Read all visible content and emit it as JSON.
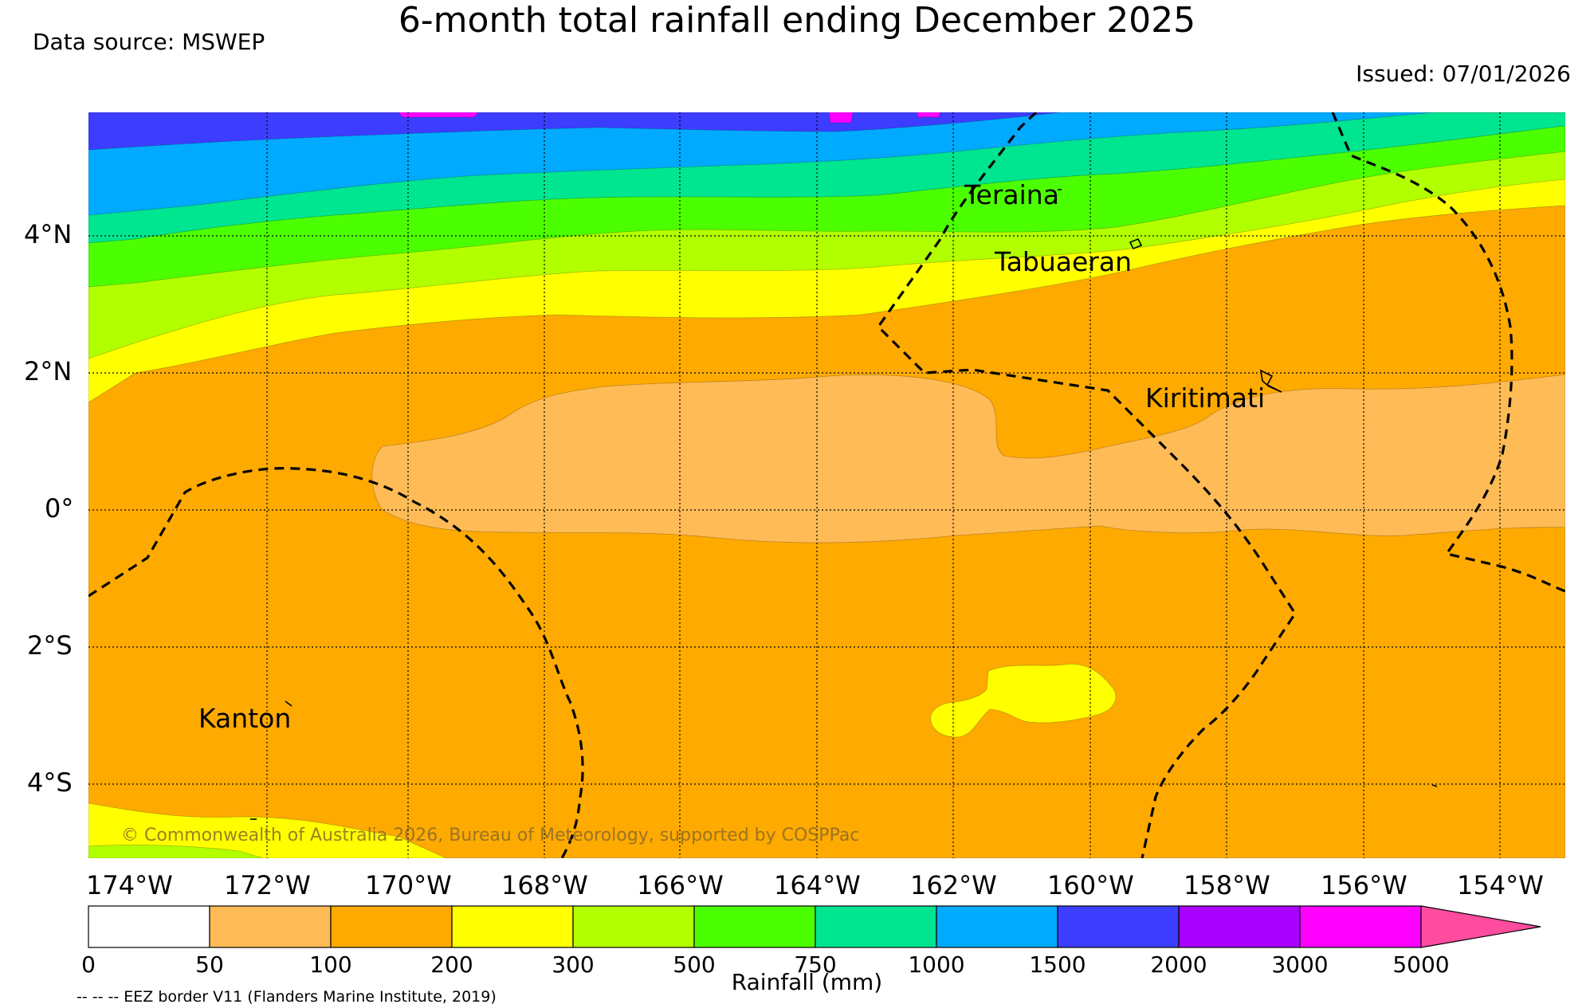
{
  "title": "6-month total rainfall ending December 2025",
  "data_source": "Data source: MSWEP",
  "issued": "Issued: 07/01/2026",
  "copyright": "© Commonwealth of Australia 2026, Bureau of Meteorology, supported by COSPPac",
  "eez_note": "-- -- -- EEZ border V11 (Flanders Marine Institute, 2019)",
  "latitude_labels": [
    "4°N",
    "2°N",
    "0°",
    "2°S",
    "4°S"
  ],
  "longitude_labels": [
    "174°W",
    "172°W",
    "170°W",
    "168°W",
    "166°W",
    "164°W",
    "162°W",
    "160°W",
    "158°W",
    "156°W",
    "154°W"
  ],
  "places": {
    "teraina": "Teraina",
    "tabuaeran": "Tabuaeran",
    "kiritimati": "Kiritimati",
    "kanton": "Kanton"
  },
  "colorbar": {
    "title": "Rainfall (mm)",
    "tick_labels": [
      "0",
      "50",
      "100",
      "200",
      "300",
      "500",
      "750",
      "1000",
      "1500",
      "2000",
      "3000",
      "5000"
    ],
    "colors": [
      "#ffffff",
      "#ffbb55",
      "#ffaa00",
      "#ffff00",
      "#b2ff00",
      "#4cff00",
      "#00e590",
      "#00aaff",
      "#3d3dff",
      "#aa00ff",
      "#ff00ff",
      "#ff4c9f"
    ]
  },
  "colors": {
    "r50_100": "#ffbb55",
    "r100_200": "#ffaa00",
    "r200_300": "#ffff00",
    "r300_500": "#b2ff00",
    "r500_750": "#4cff00",
    "r750_1000": "#00e590",
    "r1000_1500": "#00aaff",
    "r1500_2000": "#3d3dff",
    "r3000_5000": "#ff00ff"
  }
}
